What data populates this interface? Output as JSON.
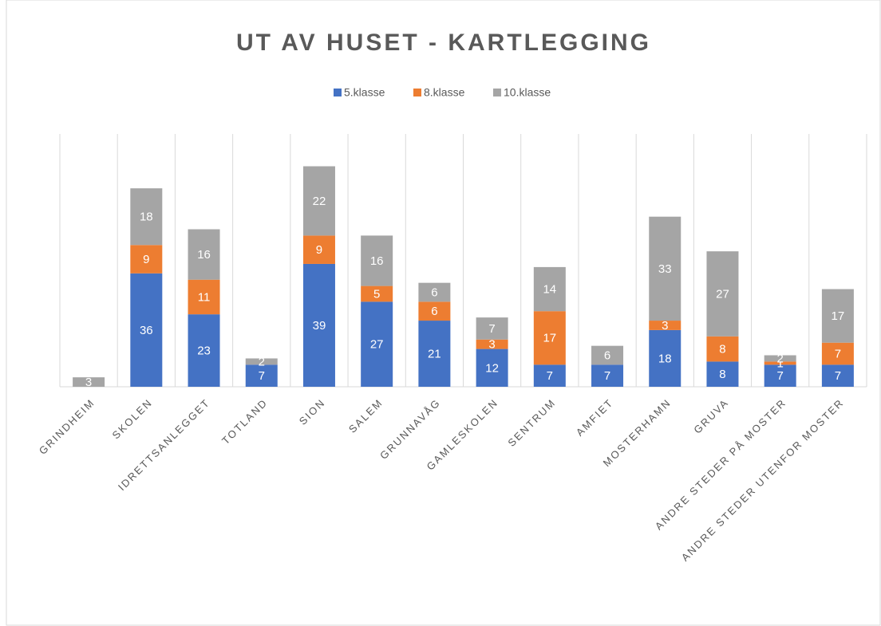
{
  "chart_data": {
    "type": "stacked_bar",
    "title": "UT AV HUSET - KARTLEGGING",
    "categories": [
      "GRINDHEIM",
      "SKOLEN",
      "IDRETTSANLEGGET",
      "TOTLAND",
      "SION",
      "SALEM",
      "GRUNNAVÅG",
      "GAMLESKOLEN",
      "SENTRUM",
      "AMFIET",
      "MOSTERHAMN",
      "GRUVA",
      "ANDRE STEDER PÅ MOSTER",
      "ANDRE STEDER UTENFOR MOSTER"
    ],
    "series": [
      {
        "name": "5.klasse",
        "color": "#4472c4",
        "values": [
          null,
          36,
          23,
          7,
          39,
          27,
          21,
          12,
          7,
          7,
          18,
          8,
          7,
          7
        ]
      },
      {
        "name": "8.klasse",
        "color": "#ed7d31",
        "values": [
          null,
          9,
          11,
          null,
          9,
          5,
          6,
          3,
          17,
          null,
          3,
          8,
          1,
          7
        ]
      },
      {
        "name": "10.klasse",
        "color": "#a5a5a5",
        "values": [
          3,
          18,
          16,
          2,
          22,
          16,
          6,
          7,
          14,
          6,
          33,
          27,
          2,
          17
        ]
      }
    ],
    "legend": "top"
  }
}
